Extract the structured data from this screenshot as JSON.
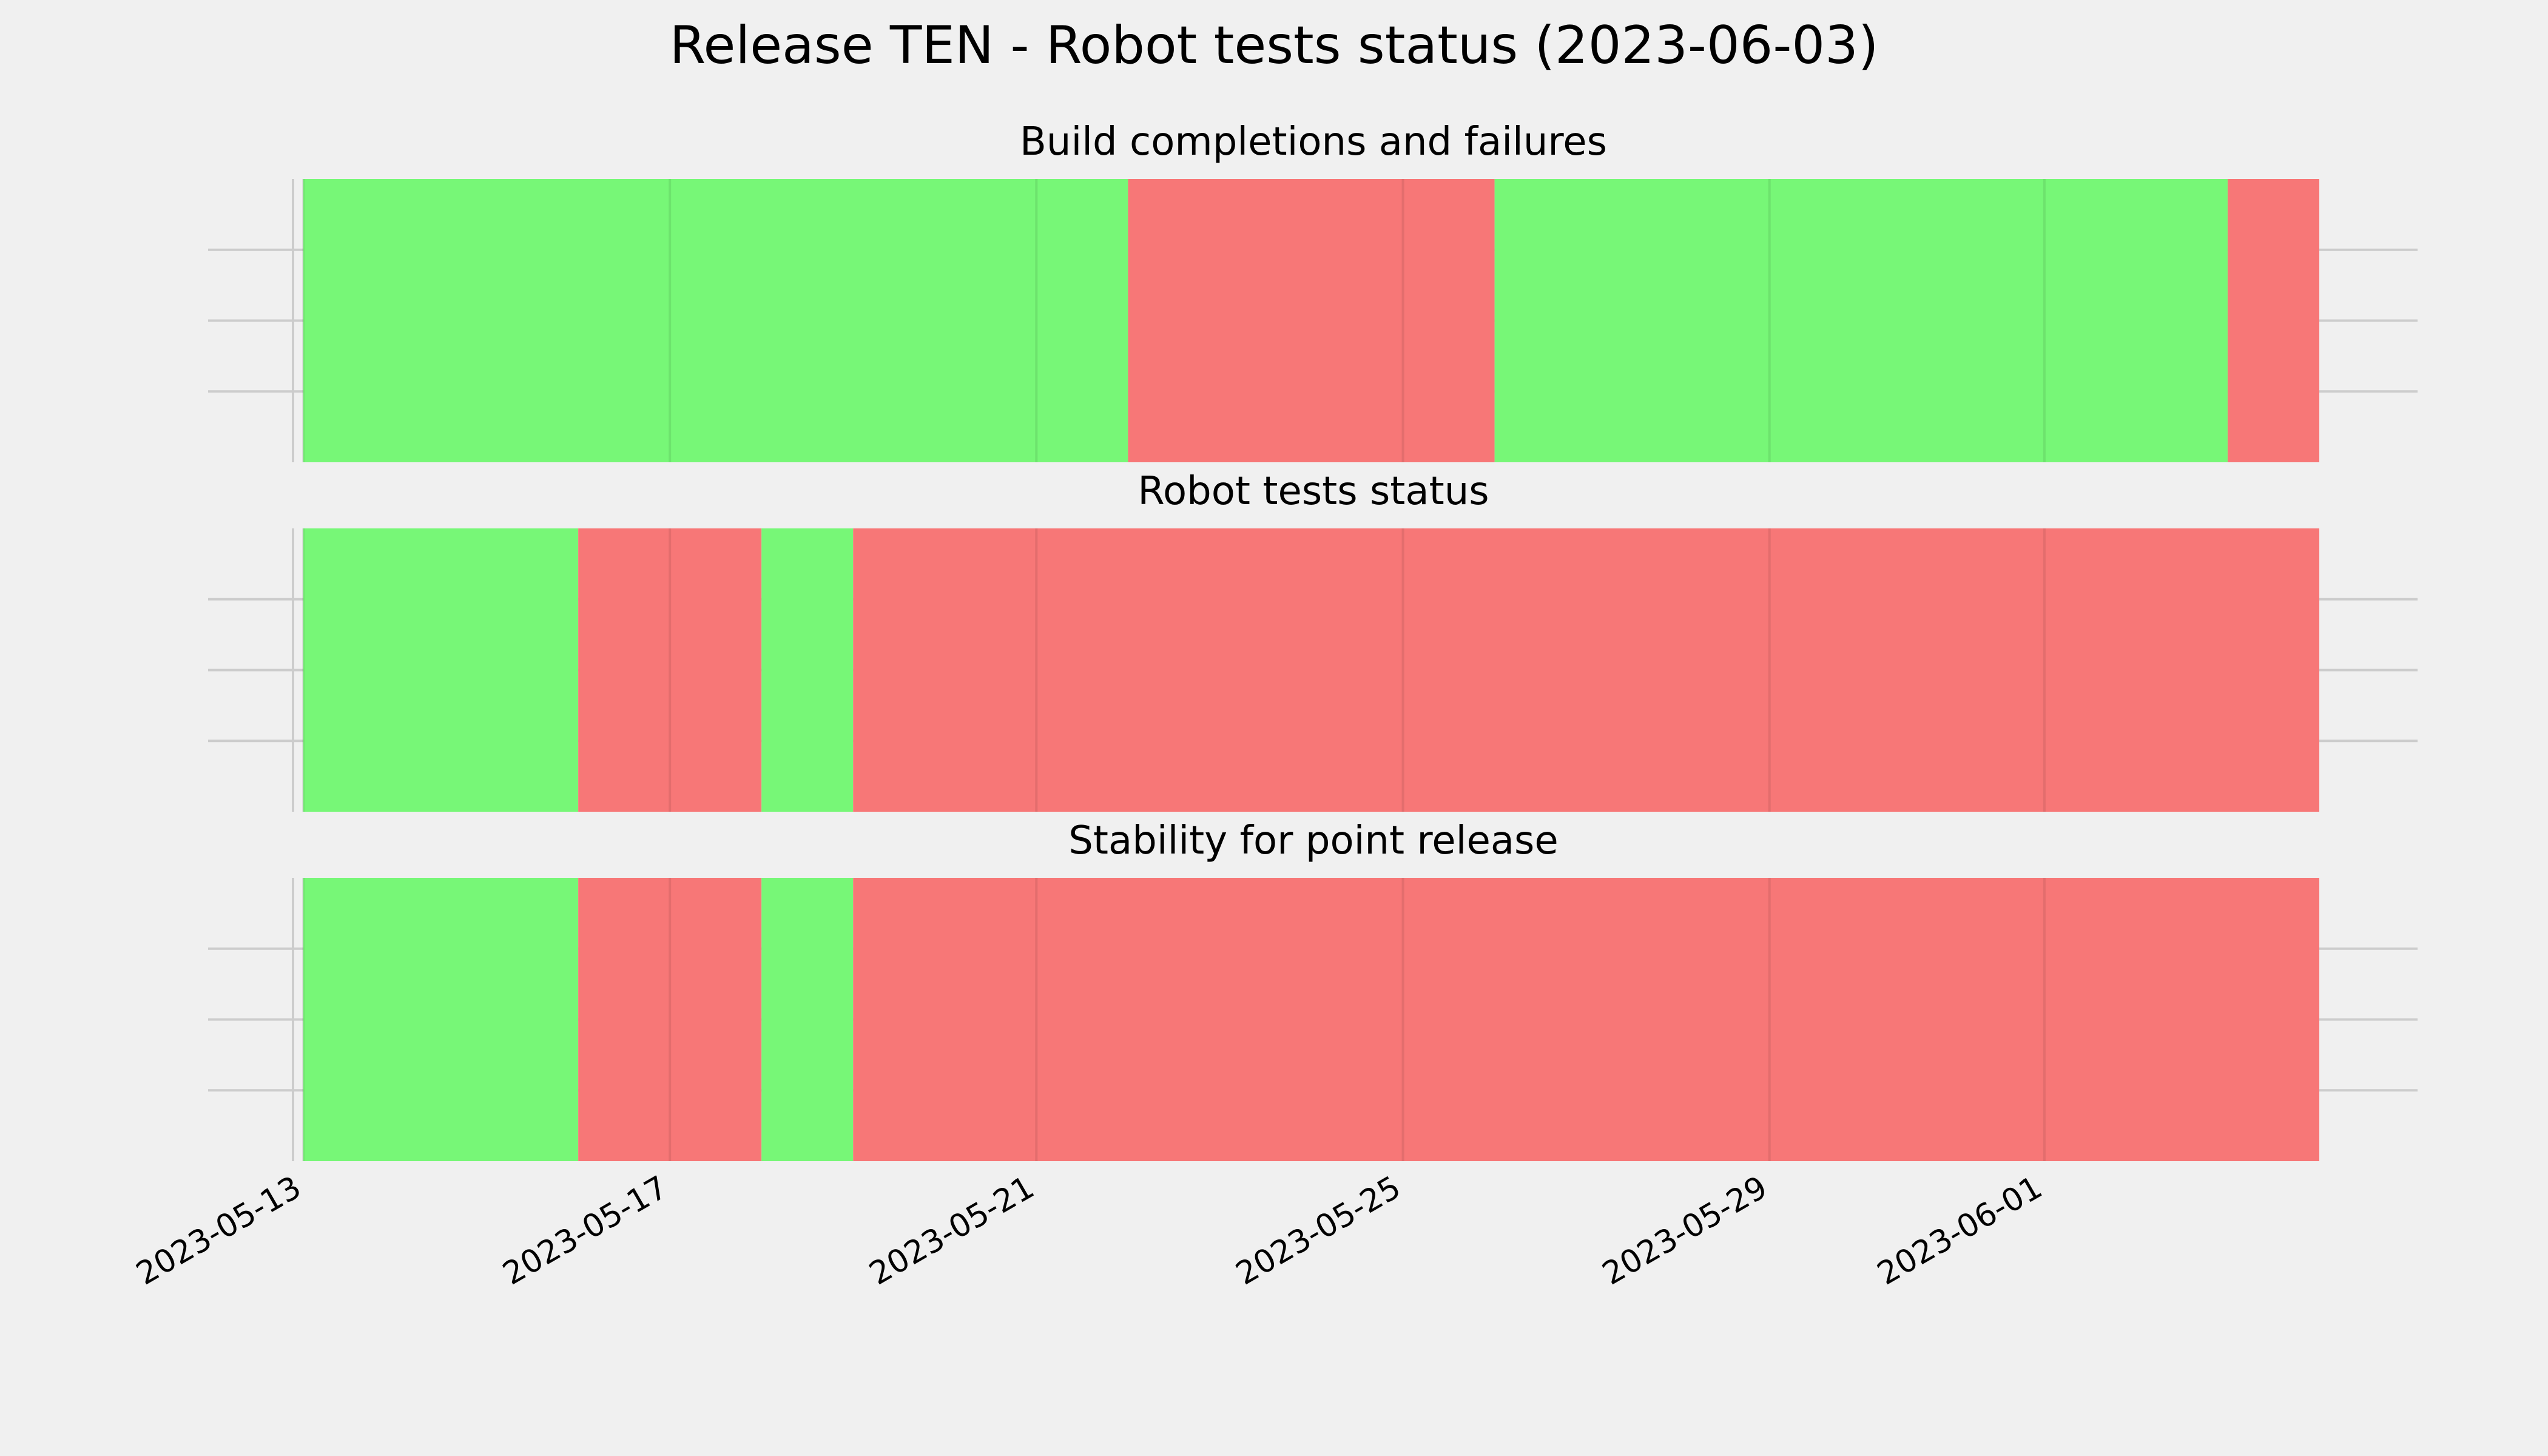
{
  "chart_data": {
    "type": "timeline",
    "title": "Release TEN - Robot tests status (2023-06-03)",
    "xlim": [
      "2023-05-13",
      "2023-06-04"
    ],
    "x_ticks": [
      "2023-05-13",
      "2023-05-17",
      "2023-05-21",
      "2023-05-25",
      "2023-05-29",
      "2023-06-01"
    ],
    "colors": {
      "pass": "#77f777",
      "fail": "#f77777",
      "background": "#f0f0f0",
      "grid": "#cccccc"
    },
    "panels": [
      {
        "title": "Build completions and failures",
        "segments": [
          {
            "start": "2023-05-13",
            "end": "2023-05-22",
            "status": "pass"
          },
          {
            "start": "2023-05-22",
            "end": "2023-05-26",
            "status": "fail"
          },
          {
            "start": "2023-05-26",
            "end": "2023-06-03",
            "status": "pass"
          },
          {
            "start": "2023-06-03",
            "end": "2023-06-04",
            "status": "fail"
          }
        ]
      },
      {
        "title": "Robot tests status",
        "segments": [
          {
            "start": "2023-05-13",
            "end": "2023-05-16",
            "status": "pass"
          },
          {
            "start": "2023-05-16",
            "end": "2023-05-18",
            "status": "fail"
          },
          {
            "start": "2023-05-18",
            "end": "2023-05-19",
            "status": "pass"
          },
          {
            "start": "2023-05-19",
            "end": "2023-06-04",
            "status": "fail"
          }
        ]
      },
      {
        "title": "Stability for point release",
        "segments": [
          {
            "start": "2023-05-13",
            "end": "2023-05-16",
            "status": "pass"
          },
          {
            "start": "2023-05-16",
            "end": "2023-05-18",
            "status": "fail"
          },
          {
            "start": "2023-05-18",
            "end": "2023-05-19",
            "status": "pass"
          },
          {
            "start": "2023-05-19",
            "end": "2023-06-04",
            "status": "fail"
          }
        ]
      }
    ]
  }
}
